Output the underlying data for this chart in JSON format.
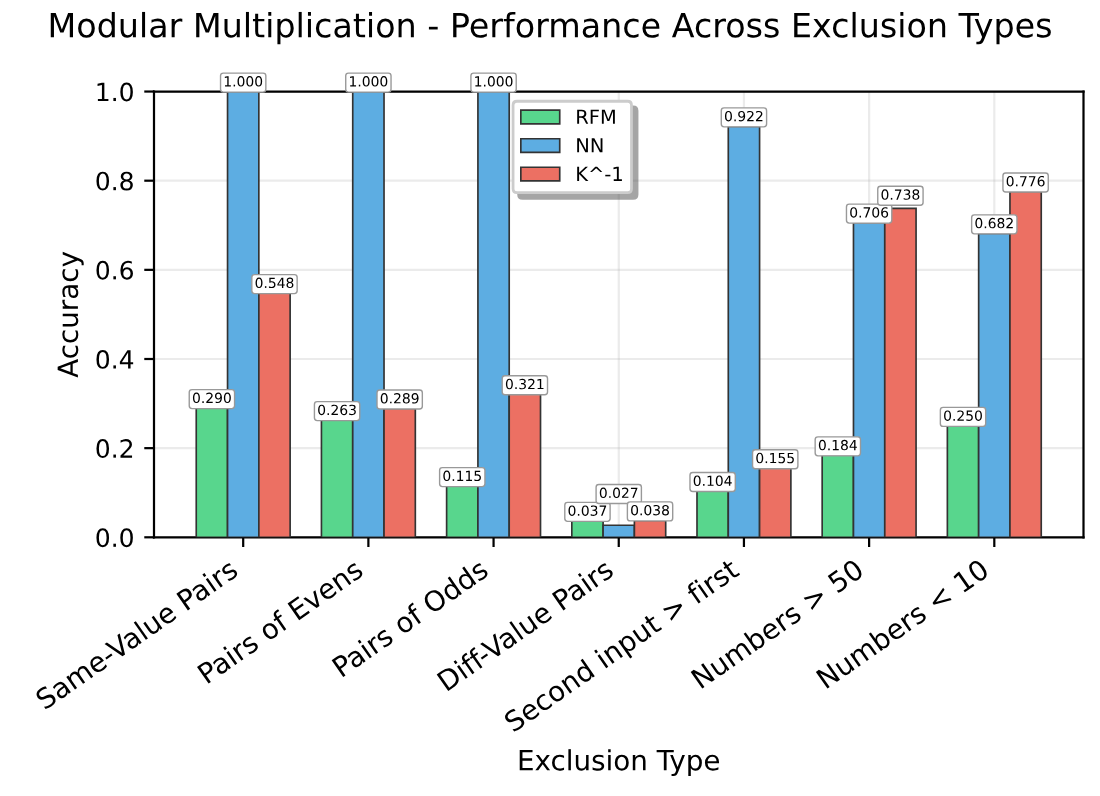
{
  "chart_data": {
    "type": "bar",
    "title": "Modular Multiplication - Performance Across Exclusion Types",
    "xlabel": "Exclusion Type",
    "ylabel": "Accuracy",
    "categories": [
      "Same-Value Pairs",
      "Pairs of Evens",
      "Pairs of Odds",
      "Diff-Value Pairs",
      "Second input > first",
      "Numbers > 50",
      "Numbers < 10"
    ],
    "series": [
      {
        "name": "RFM",
        "color": "#58d68d",
        "values": [
          0.29,
          0.263,
          0.115,
          0.037,
          0.104,
          0.184,
          0.25
        ],
        "value_labels": [
          "0.290",
          "0.263",
          "0.115",
          "0.037",
          "0.104",
          "0.184",
          "0.250"
        ]
      },
      {
        "name": "NN",
        "color": "#5dade2",
        "values": [
          1.0,
          1.0,
          1.0,
          0.027,
          0.922,
          0.706,
          0.682
        ],
        "value_labels": [
          "1.000",
          "1.000",
          "1.000",
          "0.027",
          "0.922",
          "0.706",
          "0.682"
        ]
      },
      {
        "name": "K^-1",
        "color": "#ec7063",
        "values": [
          0.548,
          0.289,
          0.321,
          0.038,
          0.155,
          0.738,
          0.776
        ],
        "value_labels": [
          "0.548",
          "0.289",
          "0.321",
          "0.038",
          "0.155",
          "0.738",
          "0.776"
        ]
      }
    ],
    "ylim": [
      0,
      1.0
    ],
    "yticks": [
      {
        "value": 0,
        "label": "0.0"
      },
      0.2,
      0.4,
      0.6,
      0.8,
      {
        "value": 1.0,
        "label": "1.0"
      }
    ],
    "grid": true,
    "legend": "top"
  }
}
